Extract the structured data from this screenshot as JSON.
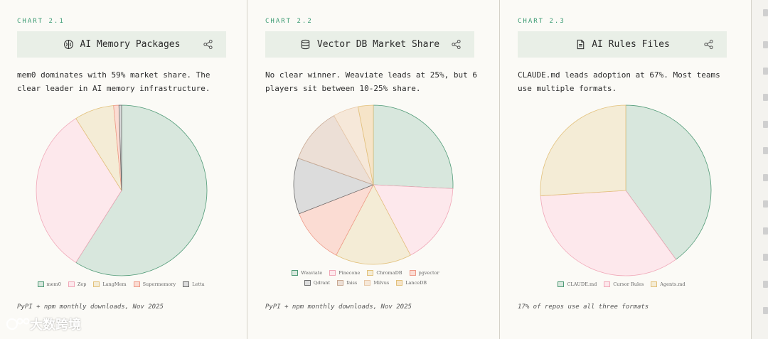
{
  "panels": [
    {
      "chart_label": "CHART 2.1",
      "title": "AI Memory Packages",
      "icon": "brain-icon",
      "description": "mem0 dominates with 59% market share. The clear leader in AI memory infrastructure.",
      "source": "PyPI + npm monthly downloads, Nov 2025"
    },
    {
      "chart_label": "CHART 2.2",
      "title": "Vector DB Market Share",
      "icon": "database-icon",
      "description": "No clear winner. Weaviate leads at 25%, but 6 players sit between 10-25% share.",
      "source": "PyPI + npm monthly downloads, Nov 2025"
    },
    {
      "chart_label": "CHART 2.3",
      "title": "AI Rules Files",
      "icon": "document-icon",
      "description": "CLAUDE.md leads adoption at 67%. Most teams use multiple formats.",
      "source": "17% of repos use all three formats"
    }
  ],
  "chart_data": [
    {
      "type": "pie",
      "title": "AI Memory Packages",
      "categories": [
        "mem0",
        "Zep",
        "LangMem",
        "Supermemory",
        "Letta"
      ],
      "values": [
        59,
        32,
        7.5,
        1,
        0.5
      ],
      "colors": [
        "#d8e7dd",
        "#fde8ec",
        "#f4ecd6",
        "#fbdcd3",
        "#dcdcdc"
      ],
      "stroke_colors": [
        "#4f9a76",
        "#f0a8b8",
        "#e2c07a",
        "#ee9a88",
        "#6b6b6b"
      ]
    },
    {
      "type": "pie",
      "title": "Vector DB Market Share",
      "categories": [
        "Weaviate",
        "Pinecone",
        "ChromaDB",
        "pgvector",
        "Qdrant",
        "faiss",
        "Milvus",
        "LanceDB"
      ],
      "values": [
        25,
        16,
        15,
        11,
        11,
        11,
        5,
        3
      ],
      "colors": [
        "#d8e7dd",
        "#fde8ec",
        "#f4ecd6",
        "#fbdcd3",
        "#dcdcdc",
        "#ecdfd6",
        "#f6e8d9",
        "#f6e4c8"
      ],
      "stroke_colors": [
        "#4f9a76",
        "#f0a8b8",
        "#e2c07a",
        "#ee9a88",
        "#6b6b6b",
        "#c8a892",
        "#e8c8a8",
        "#e2c07a"
      ]
    },
    {
      "type": "pie",
      "title": "AI Rules Files",
      "categories": [
        "CLAUDE.md",
        "Cursor Rules",
        "Agents.md"
      ],
      "values": [
        40,
        34,
        26
      ],
      "colors": [
        "#d8e7dd",
        "#fde8ec",
        "#f4ecd6"
      ],
      "stroke_colors": [
        "#4f9a76",
        "#f0a8b8",
        "#e2c07a"
      ]
    }
  ],
  "watermark": "大数跨境"
}
